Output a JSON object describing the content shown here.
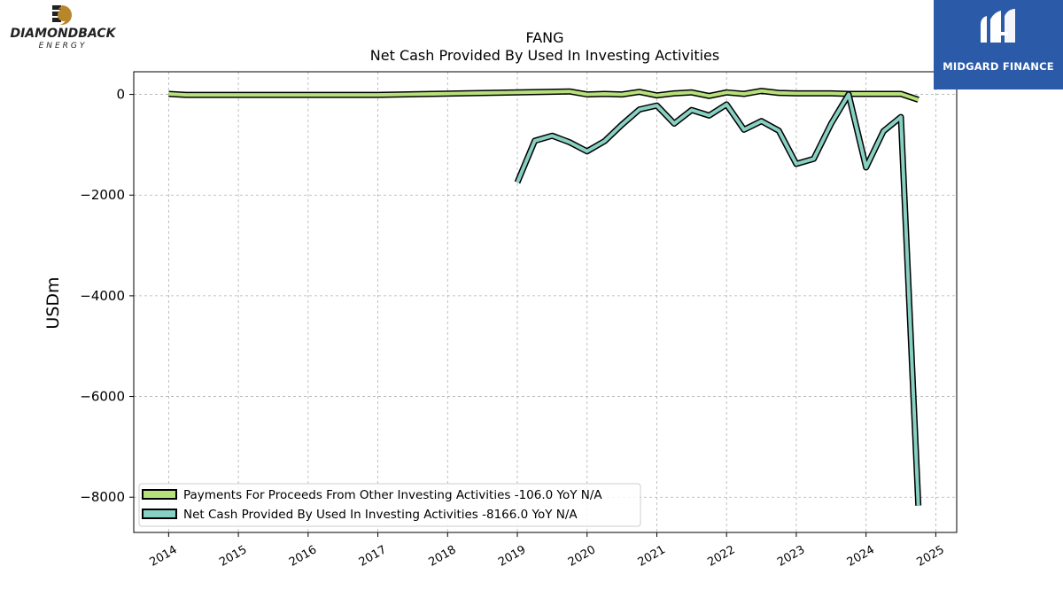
{
  "logos": {
    "left_brand": "DIAMONDBACK",
    "left_sub": "ENERGY",
    "right_brand": "MIDGARD FINANCE"
  },
  "colors": {
    "series1": "#b5e07a",
    "series2": "#88d0c2",
    "outline": "#000000",
    "grid": "#b0b0b0",
    "brand_blue": "#2b5aa8",
    "brand_gold": "#b8862a"
  },
  "chart_data": {
    "type": "line",
    "title": "FANG",
    "subtitle": "Net Cash Provided By Used In Investing Activities",
    "ylabel": "USDm",
    "xlabel": "",
    "xlim": [
      2013.5,
      2025.3
    ],
    "ylim": [
      -8700,
      450
    ],
    "grid": true,
    "legend_position": "lower-left",
    "x_ticks": [
      2014,
      2015,
      2016,
      2017,
      2018,
      2019,
      2020,
      2021,
      2022,
      2023,
      2024,
      2025
    ],
    "y_ticks": [
      0,
      -2000,
      -4000,
      -6000,
      -8000
    ],
    "y_tick_labels": [
      "0",
      "−2000",
      "−4000",
      "−6000",
      "−8000"
    ],
    "series": [
      {
        "name": "Payments For Proceeds From Other Investing Activities",
        "legend_label": "Payments For Proceeds From Other Investing Activities  -106.0 YoY N/A",
        "color": "#b5e07a",
        "x": [
          2014.0,
          2014.25,
          2017.0,
          2019.75,
          2020.0,
          2020.25,
          2020.5,
          2020.75,
          2021.0,
          2021.25,
          2021.5,
          2021.75,
          2022.0,
          2022.25,
          2022.5,
          2022.75,
          2023.0,
          2023.25,
          2023.5,
          2023.75,
          2024.0,
          2024.25,
          2024.5,
          2024.75
        ],
        "y": [
          10,
          -10,
          -10,
          60,
          0,
          10,
          0,
          50,
          -20,
          20,
          40,
          -30,
          40,
          10,
          70,
          30,
          20,
          20,
          20,
          10,
          10,
          10,
          10,
          -106
        ]
      },
      {
        "name": "Net Cash Provided By Used In Investing Activities",
        "legend_label": "Net Cash Provided By Used In Investing Activities  -8166.0 YoY N/A",
        "color": "#88d0c2",
        "x": [
          2019.0,
          2019.25,
          2019.5,
          2019.75,
          2020.0,
          2020.25,
          2020.5,
          2020.75,
          2021.0,
          2021.25,
          2021.5,
          2021.75,
          2022.0,
          2022.25,
          2022.5,
          2022.75,
          2023.0,
          2023.25,
          2023.5,
          2023.75,
          2024.0,
          2024.25,
          2024.5,
          2024.75
        ],
        "y": [
          -1750,
          -920,
          -820,
          -950,
          -1130,
          -930,
          -600,
          -300,
          -220,
          -580,
          -310,
          -420,
          -200,
          -700,
          -530,
          -720,
          -1380,
          -1280,
          -580,
          0,
          -1450,
          -730,
          -450,
          -8166
        ]
      }
    ]
  }
}
